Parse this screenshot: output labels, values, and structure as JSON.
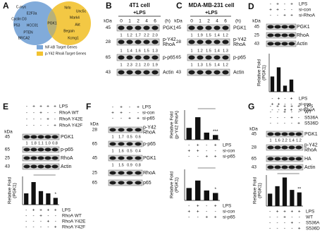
{
  "panels": {
    "a": {
      "label": "A",
      "left_genes": [
        "C-myc",
        "E2F3a",
        "Cyclin D3",
        "P53",
        "HCC01",
        "PTEN",
        "BRCA2"
      ],
      "overlap_gene": "PGK1",
      "right_genes": [
        "Nrlo",
        "Unc5c",
        "Mark4",
        "Akt",
        "Begain",
        "Kcmg1"
      ],
      "legend": [
        "NF-kB Target Genes",
        "p-Y42 RhoA Target Genes"
      ]
    },
    "b": {
      "label": "B",
      "title": "4T1 cell",
      "treatment": "+LPS",
      "kda_label": "kDa",
      "timepoints": [
        "0",
        "1",
        "2",
        "4",
        "6"
      ],
      "time_unit": "(h)",
      "blots": [
        {
          "kda": "45",
          "name": [
            "PGK1"
          ],
          "quant": [
            "1",
            "1.2",
            "1.7",
            "2.2",
            "2.0"
          ]
        },
        {
          "kda": "28",
          "name": [
            "p-Y42",
            "RhoA"
          ],
          "quant": [
            "1",
            "1.4",
            "1.6",
            "1.5",
            "1.3"
          ]
        },
        {
          "kda": "65",
          "name": [
            "p-p65"
          ],
          "quant": [
            "1",
            "2.3",
            "2.1",
            "2.0",
            "1.9"
          ]
        },
        {
          "kda": "43",
          "name": [
            "Actin"
          ]
        }
      ]
    },
    "c": {
      "label": "C",
      "title": "MDA-MB-231 cell",
      "treatment": "+LPS",
      "kda_label": "kDa",
      "timepoints": [
        "0",
        "1",
        "2",
        "4",
        "6"
      ],
      "time_unit": "(h)",
      "blots": [
        {
          "kda": "45",
          "name": [
            "PGK1"
          ],
          "quant": [
            "1",
            "1.9",
            "1.5",
            "1.4",
            "1.2"
          ]
        },
        {
          "kda": "28",
          "name": [
            "p-Y42",
            "RhoA"
          ],
          "quant": [
            "1",
            "1.2",
            "1.5",
            "1.4",
            "1.3"
          ]
        },
        {
          "kda": "65",
          "name": [
            "p-p65"
          ],
          "quant": [
            "1",
            "1.3",
            "1.5",
            "1.4",
            "1.2"
          ]
        },
        {
          "kda": "43",
          "name": [
            "Actin"
          ]
        }
      ]
    },
    "d": {
      "label": "D",
      "kda_label": "kDa",
      "conditions": [
        {
          "name": "LPS",
          "signs": [
            "-",
            "+",
            "-",
            "+"
          ]
        },
        {
          "name": "si-con",
          "signs": [
            "+",
            "+",
            "-",
            "-"
          ]
        },
        {
          "name": "si-RhoA",
          "signs": [
            "-",
            "-",
            "+",
            "+"
          ]
        }
      ],
      "blots": [
        {
          "kda": "45",
          "name": [
            "PGK1"
          ]
        },
        {
          "kda": "25",
          "name": [
            "RhoA"
          ]
        },
        {
          "kda": "43",
          "name": [
            "Actin"
          ]
        }
      ],
      "charts": [
        {
          "y_label": [
            "Relative Fold",
            "(PGK1)"
          ],
          "values": [
            1,
            1.6,
            0.4,
            0.8
          ],
          "ylim": [
            0,
            2.5
          ],
          "color": "#111111"
        }
      ]
    },
    "e": {
      "label": "E",
      "kda_label": "kDa",
      "conditions": [
        {
          "name": "LPS",
          "signs": [
            "-",
            "+",
            "+",
            "+",
            "+"
          ]
        },
        {
          "name": "RhoA WT",
          "signs": [
            "-",
            "-",
            "+",
            "-",
            "-"
          ]
        },
        {
          "name": "RhoA Y42E",
          "signs": [
            "-",
            "-",
            "-",
            "+",
            "-"
          ]
        },
        {
          "name": "RhoA Y42F",
          "signs": [
            "-",
            "-",
            "-",
            "-",
            "+"
          ]
        }
      ],
      "blots": [
        {
          "kda": "45",
          "name": [
            "PGK1"
          ],
          "quant": [
            "1",
            "1.8",
            "1.1",
            "1.0",
            "0.8"
          ]
        },
        {
          "kda": "65",
          "name": [
            "p-p65"
          ]
        },
        {
          "kda": "25",
          "name": [
            "RhoA"
          ]
        },
        {
          "kda": "43",
          "name": [
            "Actin"
          ]
        }
      ],
      "charts": [
        {
          "y_label": [
            "Relative Fold",
            "(PGK1)"
          ],
          "values": [
            1,
            2.0,
            1.2,
            1.0,
            0.6
          ],
          "ylim": [
            0,
            2.5
          ],
          "color": "#111111",
          "significance": "*"
        }
      ]
    },
    "f": {
      "label": "F",
      "kda_label": "kDa",
      "conditions": [
        {
          "name": "LPS",
          "signs": [
            "-",
            "+",
            "-",
            "+"
          ]
        },
        {
          "name": "si-con",
          "signs": [
            "+",
            "+",
            "-",
            "-"
          ]
        },
        {
          "name": "si-p65",
          "signs": [
            "-",
            "-",
            "+",
            "+"
          ]
        }
      ],
      "blots": [
        {
          "kda": "28",
          "name": [
            "p-Y42",
            "RhoA"
          ],
          "quant": [
            "1",
            "1.7",
            "0.5",
            "0.6"
          ]
        },
        {
          "kda": "65",
          "name": [
            "p-p65"
          ],
          "quant": [
            "1",
            "1.6",
            "0.5",
            "0.4"
          ]
        },
        {
          "kda": "45",
          "name": [
            "PGK1"
          ],
          "quant": [
            "1",
            "1.5",
            "0.9",
            "0.8"
          ]
        },
        {
          "kda": "25",
          "name": [
            "RhoA"
          ]
        },
        {
          "kda": "65",
          "name": [
            "p65"
          ]
        }
      ],
      "charts": [
        {
          "y_label": [
            "Relative Fold",
            "(p-Y42 RhoA)"
          ],
          "values": [
            1,
            1.9,
            0.6,
            0.4
          ],
          "ylim": [
            0,
            2.5
          ],
          "color": "#111111",
          "significance": "***"
        },
        {
          "y_label": [
            "Relative Fold",
            "(PGK1)"
          ],
          "values": [
            1,
            1.6,
            0.8,
            0.6
          ],
          "ylim": [
            0,
            2.5
          ],
          "color": "#111111",
          "significance": "*"
        }
      ]
    },
    "g": {
      "label": "G",
      "kda_label": "kDa",
      "conditions": [
        {
          "name": "LPS",
          "signs": [
            "-",
            "+",
            "+",
            "+",
            "+"
          ]
        },
        {
          "name": "WT",
          "signs": [
            "-",
            "-",
            "+",
            "-",
            "-"
          ]
        },
        {
          "name": "S536A",
          "signs": [
            "-",
            "-",
            "-",
            "+",
            "-"
          ]
        },
        {
          "name": "S536D",
          "signs": [
            "-",
            "-",
            "-",
            "-",
            "+"
          ]
        }
      ],
      "blots": [
        {
          "kda": "45",
          "name": [
            "PGK1"
          ],
          "quant": [
            "1",
            "1.6",
            "2.2",
            "1.4",
            "1.2"
          ]
        },
        {
          "kda": "28",
          "name": [
            "p-Y42",
            "RhoA"
          ]
        },
        {
          "kda": "65",
          "name": [
            "HA"
          ]
        },
        {
          "kda": "43",
          "name": [
            "Actin"
          ]
        }
      ],
      "charts": [
        {
          "y_label": [
            "Relative Fold",
            "(PGK1)"
          ],
          "values": [
            1,
            1.6,
            2.3,
            1.3,
            1.1
          ],
          "ylim": [
            0,
            2.5
          ],
          "color": "#111111",
          "significance": "**"
        }
      ]
    }
  }
}
